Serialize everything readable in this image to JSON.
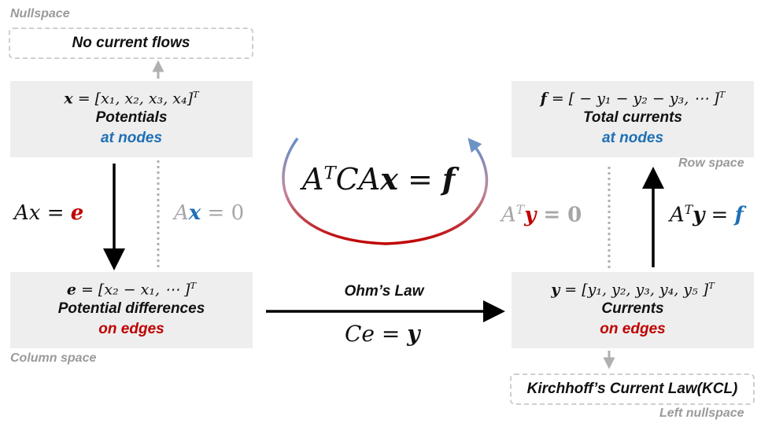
{
  "labels": {
    "nullspace": "Nullspace",
    "column_space": "Column space",
    "row_space": "Row space",
    "left_nullspace": "Left nullspace"
  },
  "nullspace_box": {
    "text": "No current flows"
  },
  "kcl_box": {
    "text": "Kirchhoff’s Current Law(KCL)"
  },
  "potentials": {
    "var": "x",
    "eq_rhs": " = [x₁, x₂, x₃, x₄]",
    "sup": "T",
    "name": "Potentials",
    "location": "at nodes"
  },
  "differences": {
    "var": "e",
    "eq_rhs": " = [x₂ − x₁, ⋯ ]",
    "sup": "T",
    "name": "Potential differences",
    "location": "on edges"
  },
  "total_currents": {
    "var": "f",
    "eq_rhs": " =  [ − y₁ − y₂ − y₃, ⋯ ]",
    "sup": "T",
    "name": "Total currents",
    "location": "at nodes"
  },
  "currents": {
    "var": "y",
    "eq_rhs": " = [y₁, y₂, y₃, y₄, y₅ ]",
    "sup": "T",
    "name": "Currents",
    "location": "on edges"
  },
  "equations": {
    "ax_e_lhs": "Ax = ",
    "ax_e_rhs": "e",
    "ax_zero_a": "A",
    "ax_zero_x": "x",
    "ax_zero_rhs": " = 0",
    "center_a": "A",
    "center_sup": "T",
    "center_rest": "CA",
    "center_x": "x",
    "center_eq": " = ",
    "center_f": "f",
    "aty_zero_a": "A",
    "aty_zero_sup": "T",
    "aty_zero_y": "y",
    "aty_zero_rhs": " = 0",
    "aty_f_a": "A",
    "aty_f_sup": "T",
    "aty_f_y": "y",
    "aty_f_eq": " = ",
    "aty_f_f": "f",
    "ohm_title": "Ohm’s Law",
    "ohm_lhs": "Ce = ",
    "ohm_y": "y"
  },
  "colors": {
    "accent_blue": "#1f6fb5",
    "accent_red": "#c00000",
    "box_bg": "#eeeeee",
    "dashed": "#cfcfcf"
  }
}
